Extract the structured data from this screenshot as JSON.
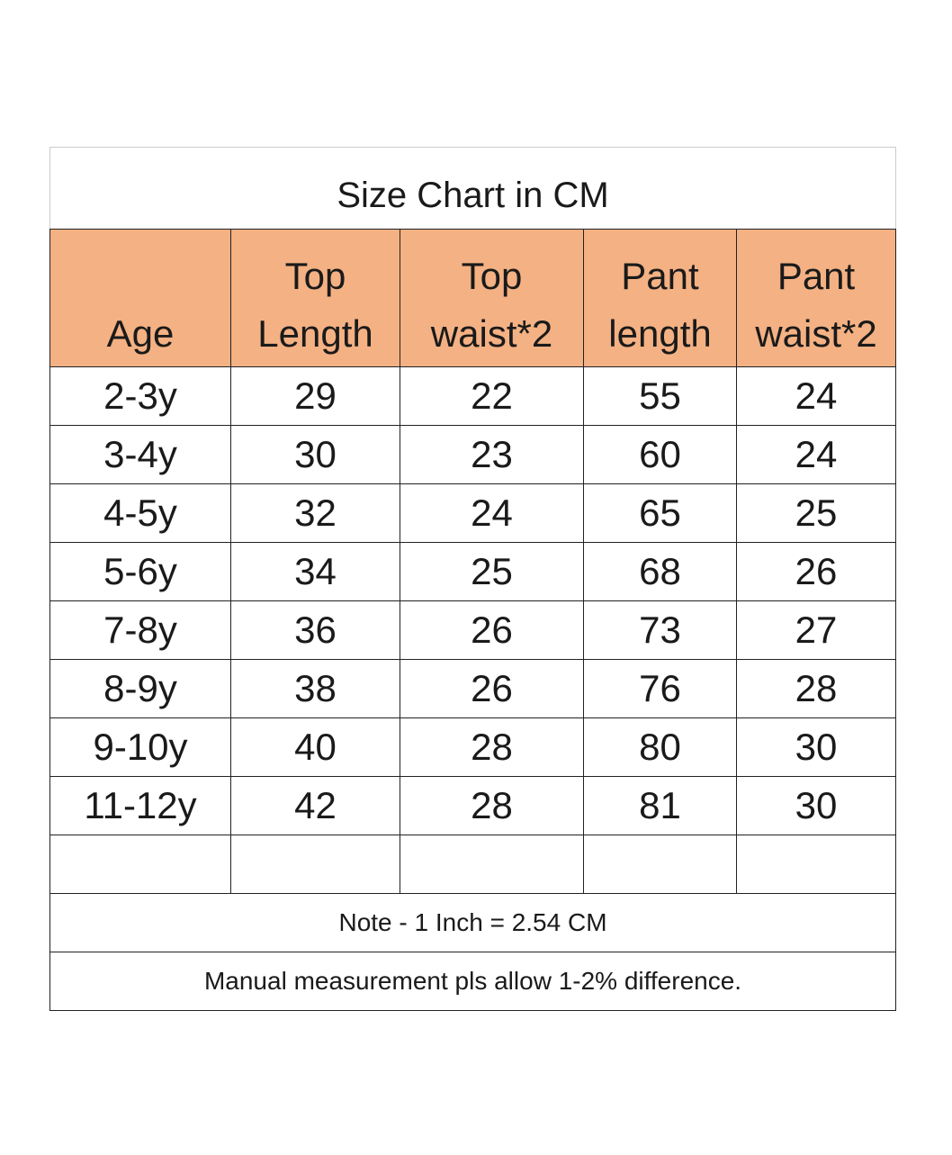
{
  "title": "Size Chart in CM",
  "headers": [
    {
      "line1": "",
      "line2": "Age"
    },
    {
      "line1": "Top",
      "line2": "Length"
    },
    {
      "line1": "Top",
      "line2": "waist*2"
    },
    {
      "line1": "Pant",
      "line2": "length"
    },
    {
      "line1": "Pant",
      "line2": "waist*2"
    }
  ],
  "rows": [
    [
      "2-3y",
      "29",
      "22",
      "55",
      "24"
    ],
    [
      "3-4y",
      "30",
      "23",
      "60",
      "24"
    ],
    [
      "4-5y",
      "32",
      "24",
      "65",
      "25"
    ],
    [
      "5-6y",
      "34",
      "25",
      "68",
      "26"
    ],
    [
      "7-8y",
      "36",
      "26",
      "73",
      "27"
    ],
    [
      "8-9y",
      "38",
      "26",
      "76",
      "28"
    ],
    [
      "9-10y",
      "40",
      "28",
      "80",
      "30"
    ],
    [
      "11-12y",
      "42",
      "28",
      "81",
      "30"
    ]
  ],
  "notes": [
    "Note - 1 Inch = 2.54 CM",
    "Manual measurement pls allow 1-2% difference."
  ],
  "colors": {
    "header_bg": "#f4b183",
    "border": "#222222"
  }
}
